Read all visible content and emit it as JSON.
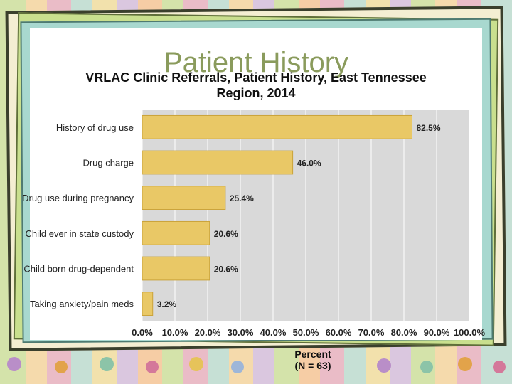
{
  "slide": {
    "title": "Patient History"
  },
  "chart_data": {
    "type": "bar",
    "orientation": "horizontal",
    "title": "VRLAC Clinic Referrals, Patient History, East Tennessee Region, 2014",
    "title_line1": "VRLAC Clinic Referrals, Patient History, East Tennessee",
    "title_line2": "Region, 2014",
    "categories": [
      "History of drug use",
      "Drug charge",
      "Drug use during pregnancy",
      "Child ever in state custody",
      "Child born drug-dependent",
      "Taking anxiety/pain meds"
    ],
    "values": [
      82.5,
      46.0,
      25.4,
      20.6,
      20.6,
      3.2
    ],
    "data_labels": [
      "82.5%",
      "46.0%",
      "25.4%",
      "20.6%",
      "20.6%",
      "3.2%"
    ],
    "xlabel": "Percent",
    "xlabel_note": "(N = 63)",
    "xlim": [
      0,
      100
    ],
    "xticks": [
      "0.0%",
      "10.0%",
      "20.0%",
      "30.0%",
      "40.0%",
      "50.0%",
      "60.0%",
      "70.0%",
      "80.0%",
      "90.0%",
      "100.0%"
    ],
    "grid": true,
    "colors": {
      "bar": "#e9c866",
      "bar_edge": "#c9a23a",
      "plot_bg": "#d9d9d9",
      "grid": "#ffffff"
    }
  }
}
